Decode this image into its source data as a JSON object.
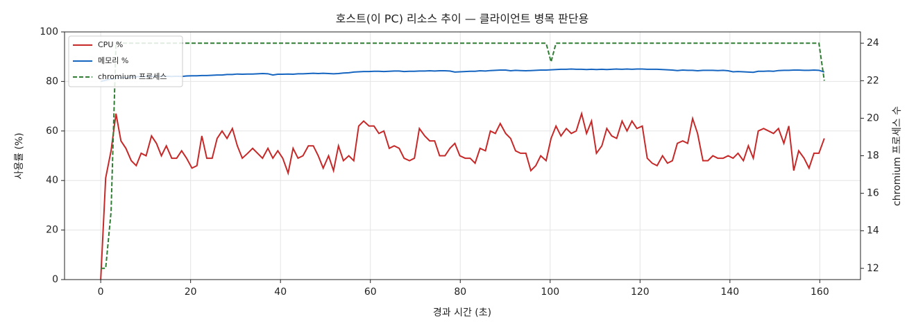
{
  "chart_data": {
    "type": "line",
    "title": "호스트(이 PC) 리소스 추이 — 클라이언트 병목 판단용",
    "x_label": "경과 시간 (초)",
    "y_label": "사용률 (%)",
    "y2_label": "chromium 프로세스 수",
    "x": [
      0,
      1.1,
      2.3,
      3.4,
      4.5,
      5.6,
      6.8,
      7.9,
      9.0,
      10.1,
      11.3,
      12.4,
      13.5,
      14.6,
      15.8,
      16.9,
      18.0,
      19.1,
      20.3,
      21.4,
      22.5,
      23.6,
      24.8,
      25.9,
      27.0,
      28.1,
      29.3,
      30.4,
      31.5,
      32.7,
      33.8,
      34.9,
      36.0,
      37.2,
      38.3,
      39.4,
      40.5,
      41.7,
      42.8,
      43.9,
      45.0,
      46.2,
      47.3,
      48.4,
      49.5,
      50.7,
      51.8,
      52.9,
      54.0,
      55.2,
      56.3,
      57.4,
      58.5,
      59.7,
      60.8,
      61.9,
      63.0,
      64.2,
      65.3,
      66.4,
      67.5,
      68.7,
      69.8,
      70.9,
      72.1,
      73.2,
      74.3,
      75.4,
      76.6,
      77.7,
      78.8,
      79.9,
      81.1,
      82.2,
      83.3,
      84.4,
      85.6,
      86.7,
      87.8,
      88.9,
      90.1,
      91.2,
      92.3,
      93.4,
      94.6,
      95.7,
      96.8,
      97.9,
      99.1,
      100.2,
      101.3,
      102.4,
      103.6,
      104.7,
      105.8,
      107.0,
      108.1,
      109.2,
      110.3,
      111.5,
      112.6,
      113.7,
      114.8,
      116.0,
      117.1,
      118.2,
      119.3,
      120.5,
      121.6,
      122.7,
      123.8,
      125.0,
      126.1,
      127.2,
      128.3,
      129.5,
      130.6,
      131.7,
      132.8,
      134.0,
      135.1,
      136.2,
      137.3,
      138.5,
      139.6,
      140.7,
      141.8,
      143.0,
      144.1,
      145.2,
      146.3,
      147.5,
      148.6,
      149.7,
      150.8,
      152.0,
      153.1,
      154.2,
      155.3,
      156.5,
      157.6,
      158.7,
      159.8,
      161.0
    ],
    "series": [
      {
        "name": "CPU %",
        "color": "#c62828",
        "style": "solid",
        "axis": "y",
        "values": [
          0,
          41,
          52,
          67,
          56,
          53,
          48,
          46,
          51,
          50,
          58,
          55,
          50,
          54,
          49,
          49,
          52,
          49,
          45,
          46,
          58,
          49,
          49,
          57,
          60,
          57,
          61,
          54,
          49,
          51,
          53,
          51,
          49,
          53,
          49,
          52,
          49,
          43,
          53,
          49,
          50,
          54,
          54,
          50,
          45,
          50,
          44,
          54,
          48,
          50,
          48,
          62,
          64,
          62,
          62,
          59,
          60,
          53,
          54,
          53,
          49,
          48,
          49,
          61,
          58,
          56,
          56,
          50,
          50,
          53,
          55,
          50,
          49,
          49,
          47,
          53,
          52,
          60,
          59,
          63,
          59,
          57,
          52,
          51,
          51,
          44,
          46,
          50,
          48,
          57,
          62,
          58,
          61,
          59,
          60,
          67,
          59,
          64,
          51,
          54,
          61,
          58,
          57,
          64,
          60,
          64,
          61,
          62,
          49,
          47,
          46,
          50,
          47,
          48,
          55,
          56,
          55,
          65,
          59,
          48,
          48,
          50,
          49,
          49,
          50,
          49,
          51,
          48,
          54,
          49,
          60,
          61,
          60,
          59,
          61,
          55,
          62,
          44,
          52,
          49,
          45,
          51,
          51,
          57
        ]
      },
      {
        "name": "메모리 %",
        "color": "#1565c0",
        "style": "solid",
        "axis": "y",
        "values": [
          80,
          80.5,
          81,
          81.3,
          81.5,
          81.6,
          81.8,
          81.9,
          82,
          82,
          82,
          82.1,
          82,
          82.1,
          82,
          82.1,
          82,
          82.2,
          82.3,
          82.3,
          82.4,
          82.4,
          82.5,
          82.6,
          82.6,
          82.8,
          82.8,
          83,
          82.9,
          83,
          83,
          83.1,
          83.2,
          83.1,
          82.6,
          82.9,
          82.9,
          83,
          82.9,
          83.1,
          83.1,
          83.2,
          83.3,
          83.2,
          83.3,
          83.2,
          83.1,
          83.2,
          83.4,
          83.5,
          83.8,
          83.9,
          84,
          84,
          84.1,
          84.1,
          84,
          84.1,
          84.2,
          84.2,
          84,
          84.1,
          84.1,
          84.2,
          84.2,
          84.3,
          84.2,
          84.3,
          84.3,
          84.2,
          83.8,
          83.9,
          84,
          84.1,
          84.1,
          84.3,
          84.2,
          84.4,
          84.5,
          84.6,
          84.6,
          84.3,
          84.5,
          84.4,
          84.3,
          84.4,
          84.5,
          84.6,
          84.6,
          84.7,
          84.8,
          84.9,
          84.9,
          85,
          84.9,
          84.9,
          84.8,
          84.9,
          84.8,
          84.9,
          84.8,
          84.9,
          85,
          84.9,
          85,
          84.9,
          85,
          85,
          84.9,
          84.9,
          84.9,
          84.8,
          84.7,
          84.6,
          84.4,
          84.6,
          84.5,
          84.5,
          84.3,
          84.5,
          84.5,
          84.5,
          84.4,
          84.5,
          84.3,
          83.9,
          84,
          83.9,
          83.8,
          83.7,
          84.1,
          84.1,
          84.2,
          84.1,
          84.4,
          84.5,
          84.5,
          84.6,
          84.6,
          84.5,
          84.5,
          84.6,
          84.5,
          83.8
        ]
      },
      {
        "name": "chromium 프로세스",
        "color": "#2e7d32",
        "style": "dashed",
        "axis": "y2",
        "values": [
          12,
          12,
          15,
          24,
          24,
          24,
          24,
          24,
          24,
          24,
          24,
          24,
          24,
          24,
          24,
          24,
          24,
          24,
          24,
          24,
          24,
          24,
          24,
          24,
          24,
          24,
          24,
          24,
          24,
          24,
          24,
          24,
          24,
          24,
          24,
          24,
          24,
          24,
          24,
          24,
          24,
          24,
          24,
          24,
          24,
          24,
          24,
          24,
          24,
          24,
          24,
          24,
          24,
          24,
          24,
          24,
          24,
          24,
          24,
          24,
          24,
          24,
          24,
          24,
          24,
          24,
          24,
          24,
          24,
          24,
          24,
          24,
          24,
          24,
          24,
          24,
          24,
          24,
          24,
          24,
          24,
          24,
          24,
          24,
          24,
          24,
          24,
          24,
          24,
          23,
          24,
          24,
          24,
          24,
          24,
          24,
          24,
          24,
          24,
          24,
          24,
          24,
          24,
          24,
          24,
          24,
          24,
          24,
          24,
          24,
          24,
          24,
          24,
          24,
          24,
          24,
          24,
          24,
          24,
          24,
          24,
          24,
          24,
          24,
          24,
          24,
          24,
          24,
          24,
          24,
          24,
          24,
          24,
          24,
          24,
          24,
          24,
          24,
          24,
          24,
          24,
          24,
          24,
          22
        ]
      }
    ],
    "xlim": [
      -8.05,
      169.05
    ],
    "xticks": [
      0,
      20,
      40,
      60,
      80,
      100,
      120,
      140,
      160
    ],
    "ylim": [
      0,
      100
    ],
    "yticks": [
      0,
      20,
      40,
      60,
      80,
      100
    ],
    "y2lim": [
      11.4,
      24.6
    ],
    "y2ticks": [
      12,
      14,
      16,
      18,
      20,
      22,
      24
    ],
    "grid": true,
    "legend": "upper left"
  }
}
